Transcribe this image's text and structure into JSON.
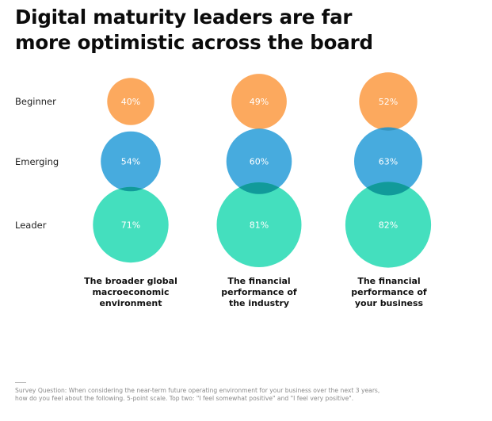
{
  "title": {
    "lines": [
      "Digital maturity leaders are far",
      "more optimistic across the board"
    ]
  },
  "chart_data": {
    "type": "bubble",
    "title": "Digital maturity leaders are far more optimistic across the board",
    "rows": [
      "Beginner",
      "Emerging",
      "Leader"
    ],
    "categories": [
      {
        "label_lines": [
          "The broader global",
          "macroeconomic",
          "environment"
        ]
      },
      {
        "label_lines": [
          "The financial",
          "performance of",
          "the industry"
        ]
      },
      {
        "label_lines": [
          "The financial",
          "performance of",
          "your business"
        ]
      }
    ],
    "series": [
      {
        "name": "Beginner",
        "color": "#fca95e",
        "values": [
          40,
          49,
          52
        ],
        "labels": [
          "40%",
          "49%",
          "52%"
        ]
      },
      {
        "name": "Emerging",
        "color": "#2d9fda",
        "values": [
          54,
          60,
          63
        ],
        "labels": [
          "54%",
          "60%",
          "63%"
        ]
      },
      {
        "name": "Leader",
        "color": "#34dcb8",
        "values": [
          71,
          81,
          82
        ],
        "labels": [
          "71%",
          "81%",
          "82%"
        ]
      }
    ],
    "unit": "%",
    "legend": "none"
  },
  "footnote": {
    "lines": [
      "Survey Question: When considering the near-term future operating environment for your business over the next 3 years,",
      "how do you feel about the following. 5-point scale. Top two: \"I feel somewhat positive\" and \"I feel very positive\"."
    ]
  }
}
